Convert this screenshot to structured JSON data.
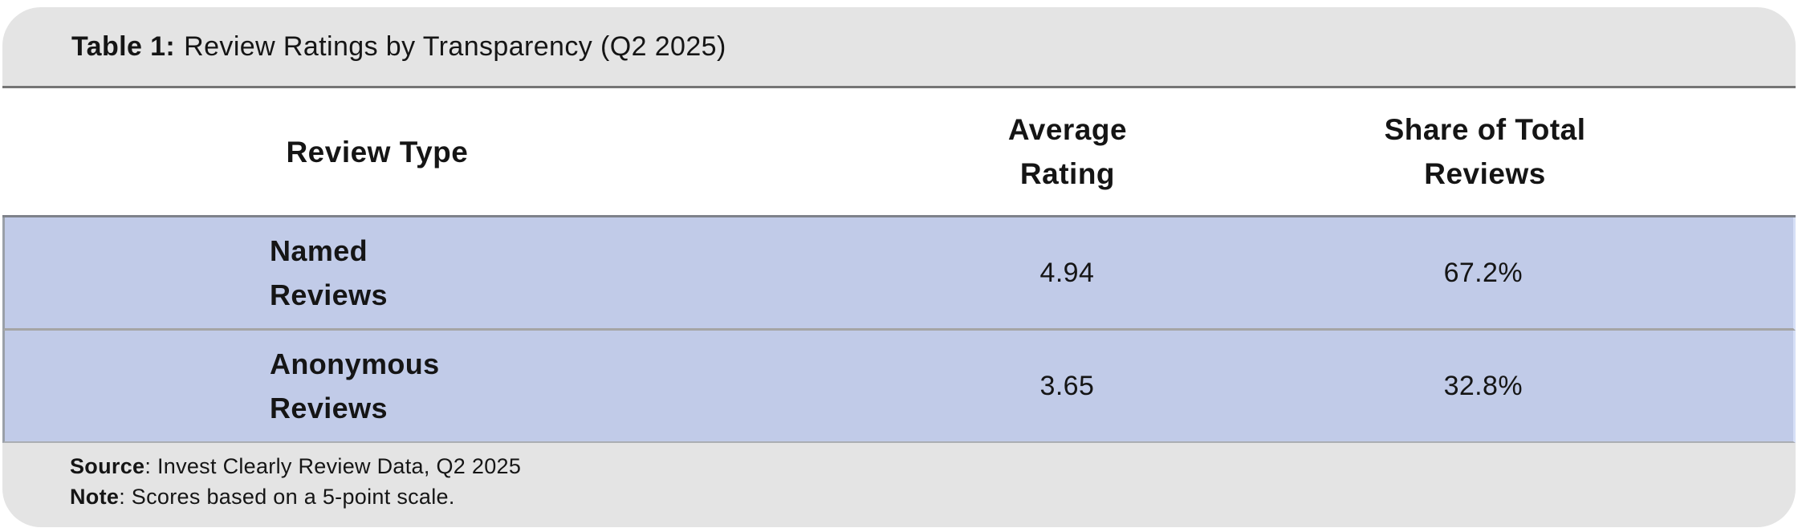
{
  "colors": {
    "bar_gray": "#e4e4e4",
    "row_blue": "#c1cbe8",
    "separator_dark": "#757575",
    "separator_light": "#a5a5a5",
    "text": "#151515"
  },
  "title_bar": {
    "label": "Table 1:",
    "text": "Review Ratings by Transparency (Q2 2025)"
  },
  "table": {
    "columns": [
      {
        "lines": [
          "Review Type"
        ]
      },
      {
        "lines": [
          "Average",
          "Rating"
        ]
      },
      {
        "lines": [
          "Share of Total",
          "Reviews"
        ]
      }
    ],
    "rows": [
      {
        "type_lines": [
          "Named",
          "Reviews"
        ],
        "average_rating": "4.94",
        "share_of_total": "67.2%"
      },
      {
        "type_lines": [
          "Anonymous",
          "Reviews"
        ],
        "average_rating": "3.65",
        "share_of_total": "32.8%"
      }
    ]
  },
  "footer": {
    "source_label": "Source",
    "source_text": ": Invest Clearly Review Data, Q2 2025",
    "note_label": "Note",
    "note_text": ": Scores based on a 5-point scale."
  },
  "chart_data": {
    "type": "table",
    "title": "Table 1: Review Ratings by Transparency (Q2 2025)",
    "columns": [
      "Review Type",
      "Average Rating",
      "Share of Total Reviews"
    ],
    "rows": [
      [
        "Named Reviews",
        4.94,
        "67.2%"
      ],
      [
        "Anonymous Reviews",
        3.65,
        "32.8%"
      ]
    ],
    "source": "Invest Clearly Review Data, Q2 2025",
    "note": "Scores based on a 5-point scale.",
    "rating_scale_max": 5
  }
}
